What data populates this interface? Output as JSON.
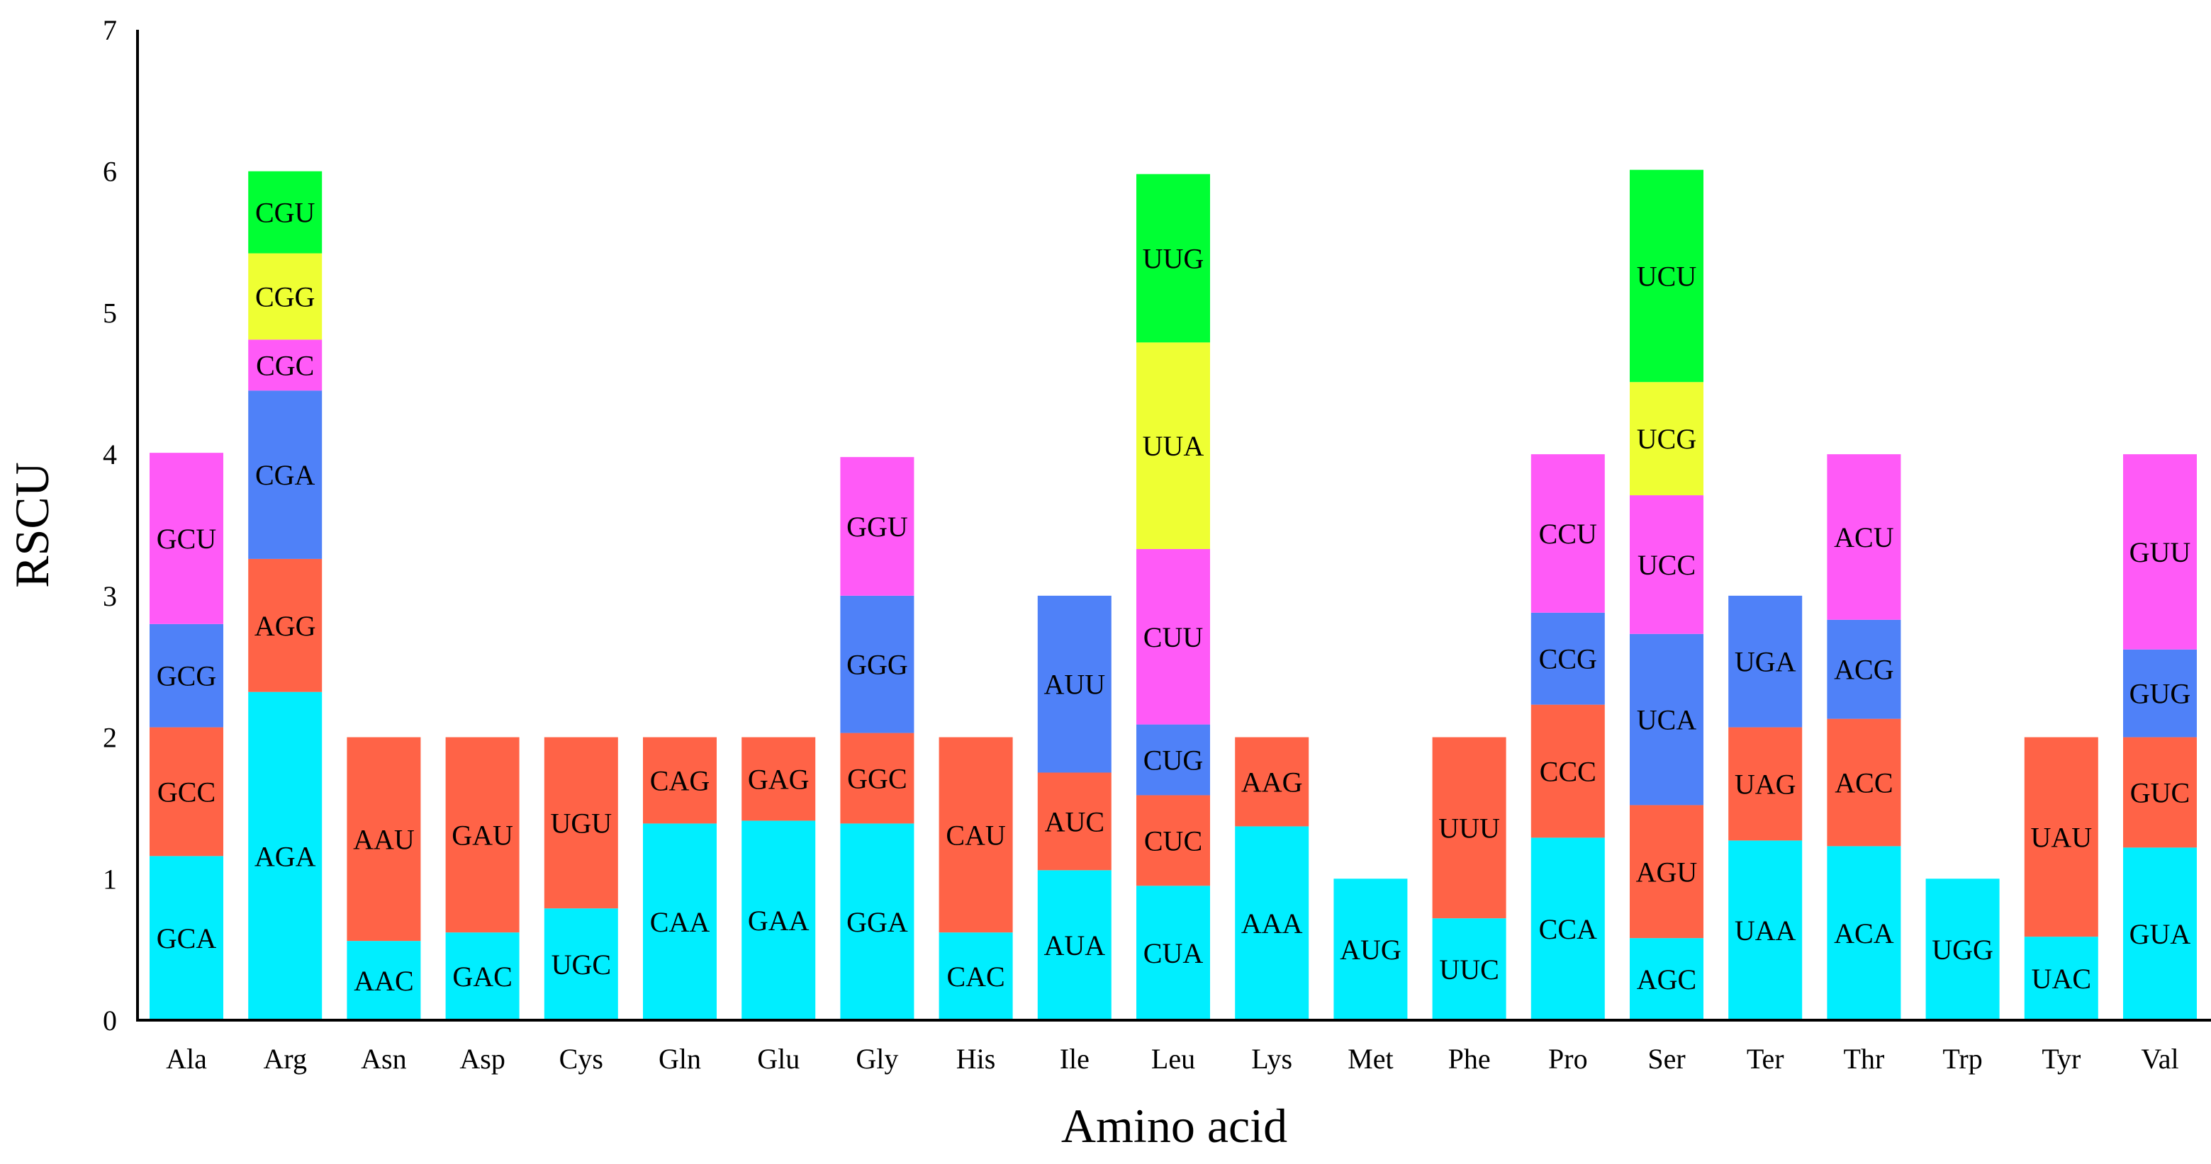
{
  "chart_data": {
    "type": "bar",
    "stacked": true,
    "title": "",
    "xlabel": "Amino acid",
    "ylabel": "RSCU",
    "ylim": [
      0,
      7
    ],
    "yticks": [
      "0",
      "1",
      "2",
      "3",
      "4",
      "5",
      "6",
      "7"
    ],
    "grid": false,
    "legend": "none",
    "colors": [
      "#00eeff",
      "#ff6347",
      "#4f81f8",
      "#ff5af7",
      "#eeff33",
      "#00ff33"
    ],
    "categories": [
      "Ala",
      "Arg",
      "Asn",
      "Asp",
      "Cys",
      "Gln",
      "Glu",
      "Gly",
      "His",
      "Ile",
      "Leu",
      "Lys",
      "Met",
      "Phe",
      "Pro",
      "Ser",
      "Ter",
      "Thr",
      "Trp",
      "Tyr",
      "Val"
    ],
    "bars": [
      {
        "category": "Ala",
        "segments": [
          {
            "codon": "GCA",
            "value": 1.16
          },
          {
            "codon": "GCC",
            "value": 0.91
          },
          {
            "codon": "GCG",
            "value": 0.73
          },
          {
            "codon": "GCU",
            "value": 1.21
          }
        ]
      },
      {
        "category": "Arg",
        "segments": [
          {
            "codon": "AGA",
            "value": 2.32
          },
          {
            "codon": "AGG",
            "value": 0.94
          },
          {
            "codon": "CGA",
            "value": 1.19
          },
          {
            "codon": "CGC",
            "value": 0.36
          },
          {
            "codon": "CGG",
            "value": 0.61
          },
          {
            "codon": "CGU",
            "value": 0.58
          }
        ]
      },
      {
        "category": "Asn",
        "segments": [
          {
            "codon": "AAC",
            "value": 0.56
          },
          {
            "codon": "AAU",
            "value": 1.44
          }
        ]
      },
      {
        "category": "Asp",
        "segments": [
          {
            "codon": "GAC",
            "value": 0.62
          },
          {
            "codon": "GAU",
            "value": 1.38
          }
        ]
      },
      {
        "category": "Cys",
        "segments": [
          {
            "codon": "UGC",
            "value": 0.79
          },
          {
            "codon": "UGU",
            "value": 1.21
          }
        ]
      },
      {
        "category": "Gln",
        "segments": [
          {
            "codon": "CAA",
            "value": 1.39
          },
          {
            "codon": "CAG",
            "value": 0.61
          }
        ]
      },
      {
        "category": "Glu",
        "segments": [
          {
            "codon": "GAA",
            "value": 1.41
          },
          {
            "codon": "GAG",
            "value": 0.59
          }
        ]
      },
      {
        "category": "Gly",
        "segments": [
          {
            "codon": "GGA",
            "value": 1.39
          },
          {
            "codon": "GGC",
            "value": 0.64
          },
          {
            "codon": "GGG",
            "value": 0.97
          },
          {
            "codon": "GGU",
            "value": 0.98
          }
        ]
      },
      {
        "category": "His",
        "segments": [
          {
            "codon": "CAC",
            "value": 0.62
          },
          {
            "codon": "CAU",
            "value": 1.38
          }
        ]
      },
      {
        "category": "Ile",
        "segments": [
          {
            "codon": "AUA",
            "value": 1.06
          },
          {
            "codon": "AUC",
            "value": 0.69
          },
          {
            "codon": "AUU",
            "value": 1.25
          }
        ]
      },
      {
        "category": "Leu",
        "segments": [
          {
            "codon": "CUA",
            "value": 0.95
          },
          {
            "codon": "CUC",
            "value": 0.64
          },
          {
            "codon": "CUG",
            "value": 0.5
          },
          {
            "codon": "CUU",
            "value": 1.24
          },
          {
            "codon": "UUA",
            "value": 1.46
          },
          {
            "codon": "UUG",
            "value": 1.19
          }
        ]
      },
      {
        "category": "Lys",
        "segments": [
          {
            "codon": "AAA",
            "value": 1.37
          },
          {
            "codon": "AAG",
            "value": 0.63
          }
        ]
      },
      {
        "category": "Met",
        "segments": [
          {
            "codon": "AUG",
            "value": 1.0
          }
        ]
      },
      {
        "category": "Phe",
        "segments": [
          {
            "codon": "UUC",
            "value": 0.72
          },
          {
            "codon": "UUU",
            "value": 1.28
          }
        ]
      },
      {
        "category": "Pro",
        "segments": [
          {
            "codon": "CCA",
            "value": 1.29
          },
          {
            "codon": "CCC",
            "value": 0.94
          },
          {
            "codon": "CCG",
            "value": 0.65
          },
          {
            "codon": "CCU",
            "value": 1.12
          }
        ]
      },
      {
        "category": "Ser",
        "segments": [
          {
            "codon": "AGC",
            "value": 0.58
          },
          {
            "codon": "AGU",
            "value": 0.94
          },
          {
            "codon": "UCA",
            "value": 1.21
          },
          {
            "codon": "UCC",
            "value": 0.98
          },
          {
            "codon": "UCG",
            "value": 0.8
          },
          {
            "codon": "UCU",
            "value": 1.5
          }
        ]
      },
      {
        "category": "Ter",
        "segments": [
          {
            "codon": "UAA",
            "value": 1.27
          },
          {
            "codon": "UAG",
            "value": 0.8
          },
          {
            "codon": "UGA",
            "value": 0.93
          }
        ]
      },
      {
        "category": "Thr",
        "segments": [
          {
            "codon": "ACA",
            "value": 1.23
          },
          {
            "codon": "ACC",
            "value": 0.9
          },
          {
            "codon": "ACG",
            "value": 0.7
          },
          {
            "codon": "ACU",
            "value": 1.17
          }
        ]
      },
      {
        "category": "Trp",
        "segments": [
          {
            "codon": "UGG",
            "value": 1.0
          }
        ]
      },
      {
        "category": "Tyr",
        "segments": [
          {
            "codon": "UAC",
            "value": 0.59
          },
          {
            "codon": "UAU",
            "value": 1.41
          }
        ]
      },
      {
        "category": "Val",
        "segments": [
          {
            "codon": "GUA",
            "value": 1.22
          },
          {
            "codon": "GUC",
            "value": 0.78
          },
          {
            "codon": "GUG",
            "value": 0.62
          },
          {
            "codon": "GUU",
            "value": 1.38
          }
        ]
      }
    ]
  }
}
